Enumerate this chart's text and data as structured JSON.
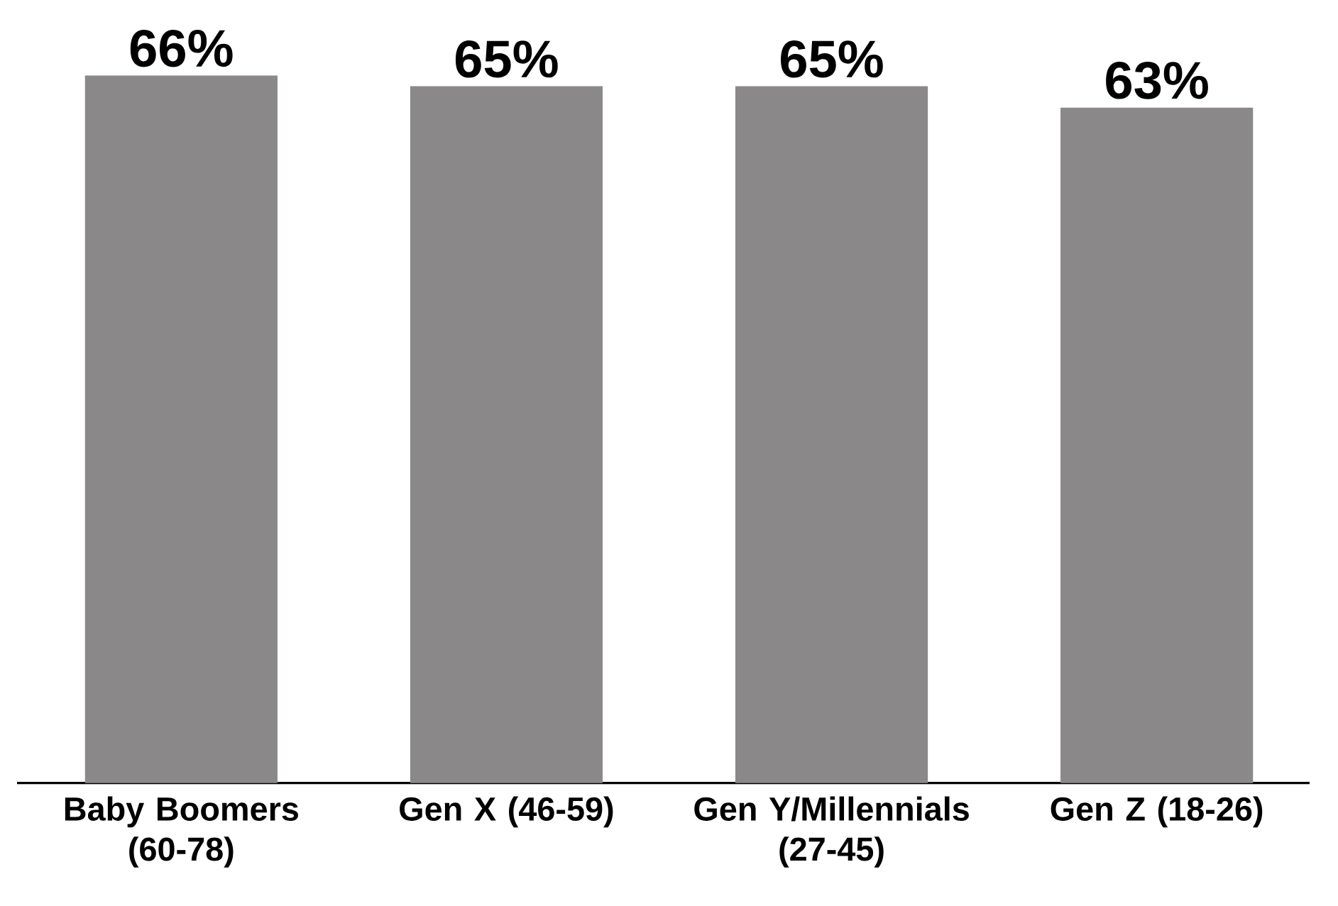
{
  "chart_data": {
    "type": "bar",
    "categories": [
      "Baby Boomers (60-78)",
      "Gen X (46-59)",
      "Gen Y/Millennials (27-45)",
      "Gen Z (18-26)"
    ],
    "values": [
      66,
      65,
      65,
      63
    ],
    "value_labels": [
      "66%",
      "65%",
      "65%",
      "63%"
    ],
    "color": "#8a8889"
  }
}
